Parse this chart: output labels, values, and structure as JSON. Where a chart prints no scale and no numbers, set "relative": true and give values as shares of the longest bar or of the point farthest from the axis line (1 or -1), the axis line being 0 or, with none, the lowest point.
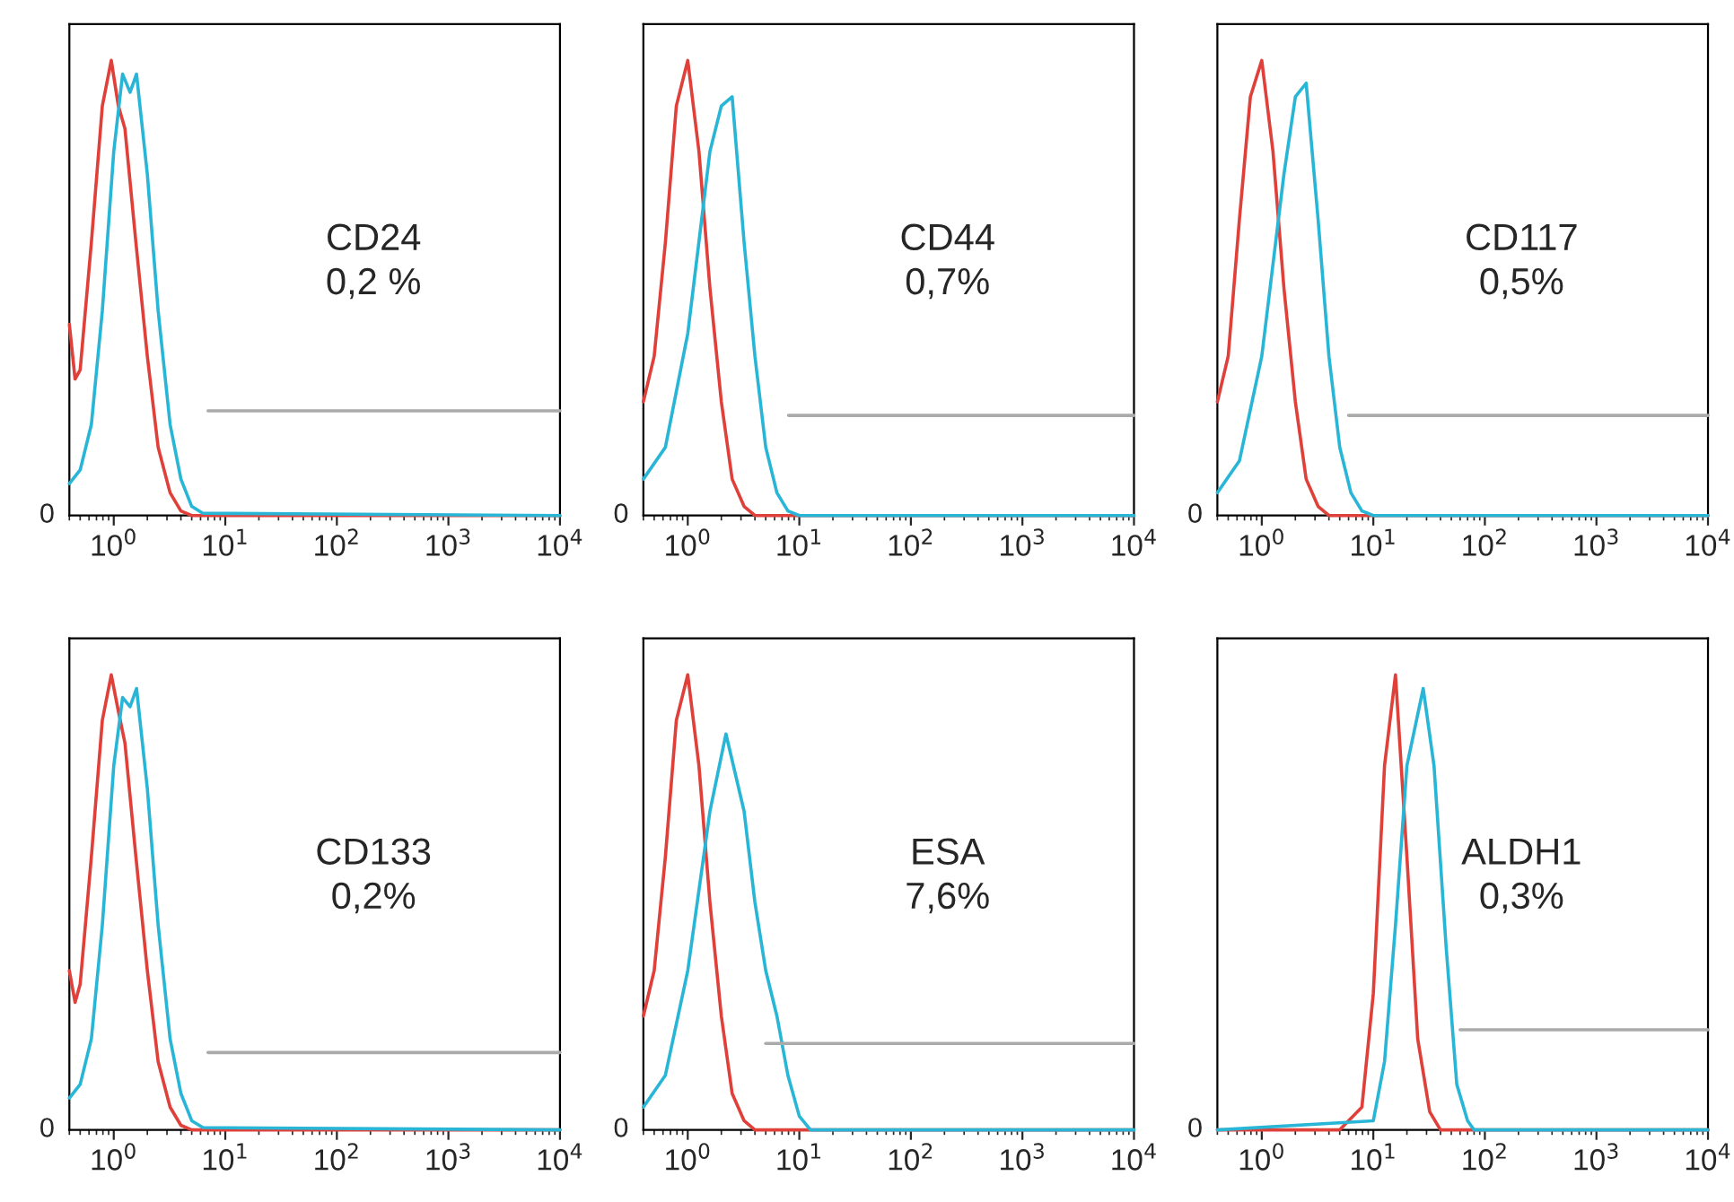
{
  "chart_data": [
    {
      "type": "line",
      "relative": true,
      "log": "x",
      "xlim": [
        0.4,
        10000
      ],
      "xticks": [
        {
          "value": 1,
          "label": "10$^{0}$"
        },
        {
          "value": 10,
          "label": "10$^{1}$"
        },
        {
          "value": 100,
          "label": "10$^{2}$"
        },
        {
          "value": 1000,
          "label": "10$^{3}$"
        },
        {
          "value": 10000,
          "label": "10$^{4}$"
        }
      ],
      "tick_labels": "x",
      "annotations": [
        "0",
        "CD24",
        "0,2 %"
      ],
      "series": [
        {
          "color": "#e0403a",
          "x": [
            0.4,
            0.45,
            0.5,
            0.63,
            0.79,
            0.95,
            1.1,
            1.26,
            1.58,
            2,
            2.5,
            3.2,
            4,
            5,
            10000
          ],
          "values": [
            0.42,
            0.3,
            0.32,
            0.6,
            0.9,
            1.0,
            0.9,
            0.85,
            0.6,
            0.35,
            0.15,
            0.05,
            0.01,
            0,
            0
          ]
        },
        {
          "color": "#29b6d6",
          "x": [
            0.4,
            0.5,
            0.63,
            0.79,
            1,
            1.2,
            1.4,
            1.6,
            2,
            2.5,
            3.2,
            4,
            5,
            6.3,
            10000
          ],
          "values": [
            0.07,
            0.1,
            0.2,
            0.45,
            0.8,
            0.97,
            0.93,
            0.97,
            0.75,
            0.45,
            0.2,
            0.08,
            0.02,
            0.005,
            0
          ]
        },
        {
          "color": "#aaaaaa",
          "x": [
            7,
            10000
          ],
          "values": [
            0.23,
            0.23
          ]
        }
      ]
    },
    {
      "type": "line",
      "relative": true,
      "log": "x",
      "xlim": [
        0.4,
        10000
      ],
      "xticks": [
        {
          "value": 1,
          "label": "10$^{0}$"
        },
        {
          "value": 10,
          "label": "10$^{1}$"
        },
        {
          "value": 100,
          "label": "10$^{2}$"
        },
        {
          "value": 1000,
          "label": "10$^{3}$"
        },
        {
          "value": 10000,
          "label": "10$^{4}$"
        }
      ],
      "tick_labels": "x",
      "annotations": [
        "0",
        "CD44",
        "0,7%"
      ],
      "series": [
        {
          "color": "#e0403a",
          "x": [
            0.4,
            0.5,
            0.63,
            0.79,
            1,
            1.26,
            1.58,
            2,
            2.5,
            3.2,
            4,
            10000
          ],
          "values": [
            0.25,
            0.35,
            0.6,
            0.9,
            1.0,
            0.8,
            0.5,
            0.25,
            0.08,
            0.02,
            0,
            0
          ]
        },
        {
          "color": "#29b6d6",
          "x": [
            0.4,
            0.63,
            1,
            1.58,
            2,
            2.5,
            3.2,
            4,
            5,
            6.3,
            7.9,
            10,
            10000
          ],
          "values": [
            0.08,
            0.15,
            0.4,
            0.8,
            0.9,
            0.92,
            0.6,
            0.35,
            0.15,
            0.05,
            0.01,
            0,
            0
          ]
        },
        {
          "color": "#aaaaaa",
          "x": [
            8,
            10000
          ],
          "values": [
            0.22,
            0.22
          ]
        }
      ]
    },
    {
      "type": "line",
      "relative": true,
      "log": "x",
      "xlim": [
        0.4,
        10000
      ],
      "xticks": [
        {
          "value": 1,
          "label": "10$^{0}$"
        },
        {
          "value": 10,
          "label": "10$^{1}$"
        },
        {
          "value": 100,
          "label": "10$^{2}$"
        },
        {
          "value": 1000,
          "label": "10$^{3}$"
        },
        {
          "value": 10000,
          "label": "10$^{4}$"
        }
      ],
      "tick_labels": "x",
      "annotations": [
        "0",
        "CD117",
        "0,5%"
      ],
      "series": [
        {
          "color": "#e0403a",
          "x": [
            0.4,
            0.5,
            0.63,
            0.79,
            1,
            1.26,
            1.58,
            2,
            2.5,
            3.2,
            4,
            10000
          ],
          "values": [
            0.25,
            0.35,
            0.65,
            0.92,
            1.0,
            0.8,
            0.5,
            0.25,
            0.08,
            0.02,
            0,
            0
          ]
        },
        {
          "color": "#29b6d6",
          "x": [
            0.4,
            0.63,
            1,
            1.58,
            2,
            2.5,
            3.2,
            4,
            5,
            6.3,
            7.9,
            10,
            10000
          ],
          "values": [
            0.05,
            0.12,
            0.35,
            0.75,
            0.92,
            0.95,
            0.65,
            0.35,
            0.15,
            0.05,
            0.01,
            0,
            0
          ]
        },
        {
          "color": "#aaaaaa",
          "x": [
            6,
            10000
          ],
          "values": [
            0.22,
            0.22
          ]
        }
      ]
    },
    {
      "type": "line",
      "relative": true,
      "log": "x",
      "xlim": [
        0.4,
        10000
      ],
      "xticks": [
        {
          "value": 1,
          "label": "10$^{0}$"
        },
        {
          "value": 10,
          "label": "10$^{1}$"
        },
        {
          "value": 100,
          "label": "10$^{2}$"
        },
        {
          "value": 1000,
          "label": "10$^{3}$"
        },
        {
          "value": 10000,
          "label": "10$^{4}$"
        }
      ],
      "tick_labels": "x",
      "annotations": [
        "0",
        "CD133",
        "0,2%"
      ],
      "series": [
        {
          "color": "#e0403a",
          "x": [
            0.4,
            0.45,
            0.5,
            0.63,
            0.79,
            0.95,
            1.1,
            1.26,
            1.58,
            2,
            2.5,
            3.2,
            4,
            5,
            10000
          ],
          "values": [
            0.35,
            0.28,
            0.32,
            0.6,
            0.9,
            1.0,
            0.92,
            0.85,
            0.6,
            0.35,
            0.15,
            0.05,
            0.01,
            0,
            0
          ]
        },
        {
          "color": "#29b6d6",
          "x": [
            0.4,
            0.5,
            0.63,
            0.79,
            1,
            1.2,
            1.4,
            1.6,
            2,
            2.5,
            3.2,
            4,
            5,
            6.3,
            10000
          ],
          "values": [
            0.07,
            0.1,
            0.2,
            0.45,
            0.8,
            0.95,
            0.93,
            0.97,
            0.75,
            0.45,
            0.2,
            0.08,
            0.02,
            0.005,
            0
          ]
        },
        {
          "color": "#aaaaaa",
          "x": [
            7,
            10000
          ],
          "values": [
            0.17,
            0.17
          ]
        }
      ]
    },
    {
      "type": "line",
      "relative": true,
      "log": "x",
      "xlim": [
        0.4,
        10000
      ],
      "xticks": [
        {
          "value": 1,
          "label": "10$^{0}$"
        },
        {
          "value": 10,
          "label": "10$^{1}$"
        },
        {
          "value": 100,
          "label": "10$^{2}$"
        },
        {
          "value": 1000,
          "label": "10$^{3}$"
        },
        {
          "value": 10000,
          "label": "10$^{4}$"
        }
      ],
      "tick_labels": "x",
      "annotations": [
        "0",
        "ESA",
        "7,6%"
      ],
      "series": [
        {
          "color": "#e0403a",
          "x": [
            0.4,
            0.5,
            0.63,
            0.79,
            1,
            1.26,
            1.58,
            2,
            2.5,
            3.2,
            4,
            10000
          ],
          "values": [
            0.25,
            0.35,
            0.6,
            0.9,
            1.0,
            0.8,
            0.5,
            0.25,
            0.08,
            0.02,
            0,
            0
          ]
        },
        {
          "color": "#29b6d6",
          "x": [
            0.4,
            0.63,
            1,
            1.58,
            2.2,
            3.2,
            4,
            5,
            6.3,
            7.9,
            10,
            12.6,
            10000
          ],
          "values": [
            0.05,
            0.12,
            0.35,
            0.7,
            0.87,
            0.7,
            0.5,
            0.35,
            0.25,
            0.12,
            0.03,
            0,
            0
          ]
        },
        {
          "color": "#aaaaaa",
          "x": [
            5,
            10000
          ],
          "values": [
            0.19,
            0.19
          ]
        }
      ]
    },
    {
      "type": "line",
      "relative": true,
      "log": "x",
      "xlim": [
        0.4,
        10000
      ],
      "xticks": [
        {
          "value": 1,
          "label": "10$^{0}$"
        },
        {
          "value": 10,
          "label": "10$^{1}$"
        },
        {
          "value": 100,
          "label": "10$^{2}$"
        },
        {
          "value": 1000,
          "label": "10$^{3}$"
        },
        {
          "value": 10000,
          "label": "10$^{4}$"
        }
      ],
      "tick_labels": "x",
      "annotations": [
        "0",
        "ALDH1",
        "0,3%"
      ],
      "series": [
        {
          "color": "#e0403a",
          "x": [
            0.4,
            5,
            7.9,
            10,
            12.6,
            15.8,
            20,
            25,
            32,
            40,
            10000
          ],
          "values": [
            0,
            0,
            0.05,
            0.3,
            0.8,
            1.0,
            0.6,
            0.2,
            0.04,
            0,
            0
          ]
        },
        {
          "color": "#29b6d6",
          "x": [
            0.4,
            10,
            12.6,
            15.8,
            20,
            28,
            35,
            45,
            56,
            70,
            80,
            10000
          ],
          "values": [
            0,
            0.02,
            0.15,
            0.45,
            0.8,
            0.97,
            0.8,
            0.4,
            0.1,
            0.02,
            0,
            0
          ]
        },
        {
          "color": "#aaaaaa",
          "x": [
            60,
            10000
          ],
          "values": [
            0.22,
            0.22
          ]
        }
      ]
    }
  ]
}
